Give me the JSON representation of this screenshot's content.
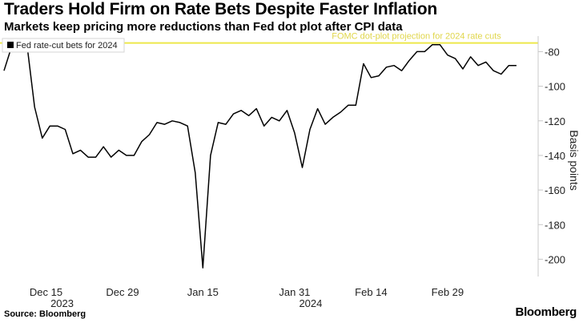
{
  "title": "Traders Hold Firm on Rate Bets Despite Faster Inflation",
  "subtitle": "Markets keep pricing more reductions than Fed dot plot after CPI data",
  "source": "Source: Bloomberg",
  "brand": "Bloomberg",
  "chart_data": {
    "type": "line",
    "series": [
      {
        "name": "Fed rate-cut bets for 2024",
        "color": "#000000",
        "values": [
          -91,
          -77,
          -78,
          -76,
          -112,
          -130,
          -123,
          -123,
          -125,
          -139,
          -137,
          -141,
          -141,
          -135,
          -141,
          -137,
          -140,
          -140,
          -132,
          -128,
          -121,
          -122,
          -120,
          -121,
          -123,
          -150,
          -205,
          -140,
          -121,
          -122,
          -116,
          -114,
          -117,
          -113,
          -123,
          -118,
          -120,
          -114,
          -127,
          -147,
          -125,
          -113,
          -122,
          -118,
          -115,
          -111,
          -111,
          -87,
          -95,
          -94,
          -89,
          -88,
          -91,
          -85,
          -80,
          -80,
          -76,
          -76,
          -82,
          -84,
          -90,
          -83,
          -88,
          -86,
          -91,
          -93,
          -88,
          -88
        ]
      }
    ],
    "reference_line": {
      "label": "FOMC dot-plot projection for 2024 rate cuts",
      "value": -75,
      "color": "#ede84a"
    },
    "x_ticks": [
      {
        "index": 5.5,
        "label": "Dec 15",
        "sublabel": "2023"
      },
      {
        "index": 15.5,
        "label": "Dec 29",
        "sublabel": ""
      },
      {
        "index": 26,
        "label": "Jan 15",
        "sublabel": ""
      },
      {
        "index": 38,
        "label": "Jan 31",
        "sublabel": "2024"
      },
      {
        "index": 48,
        "label": "Feb 14",
        "sublabel": ""
      },
      {
        "index": 58,
        "label": "Feb 29",
        "sublabel": ""
      }
    ],
    "y_ticks": [
      -80,
      -100,
      -120,
      -140,
      -160,
      -180,
      -200
    ],
    "ylim": [
      -210,
      -71
    ],
    "ylabel": "Basis points",
    "xlabel": "",
    "legend_position": "top-left",
    "grid": false
  }
}
